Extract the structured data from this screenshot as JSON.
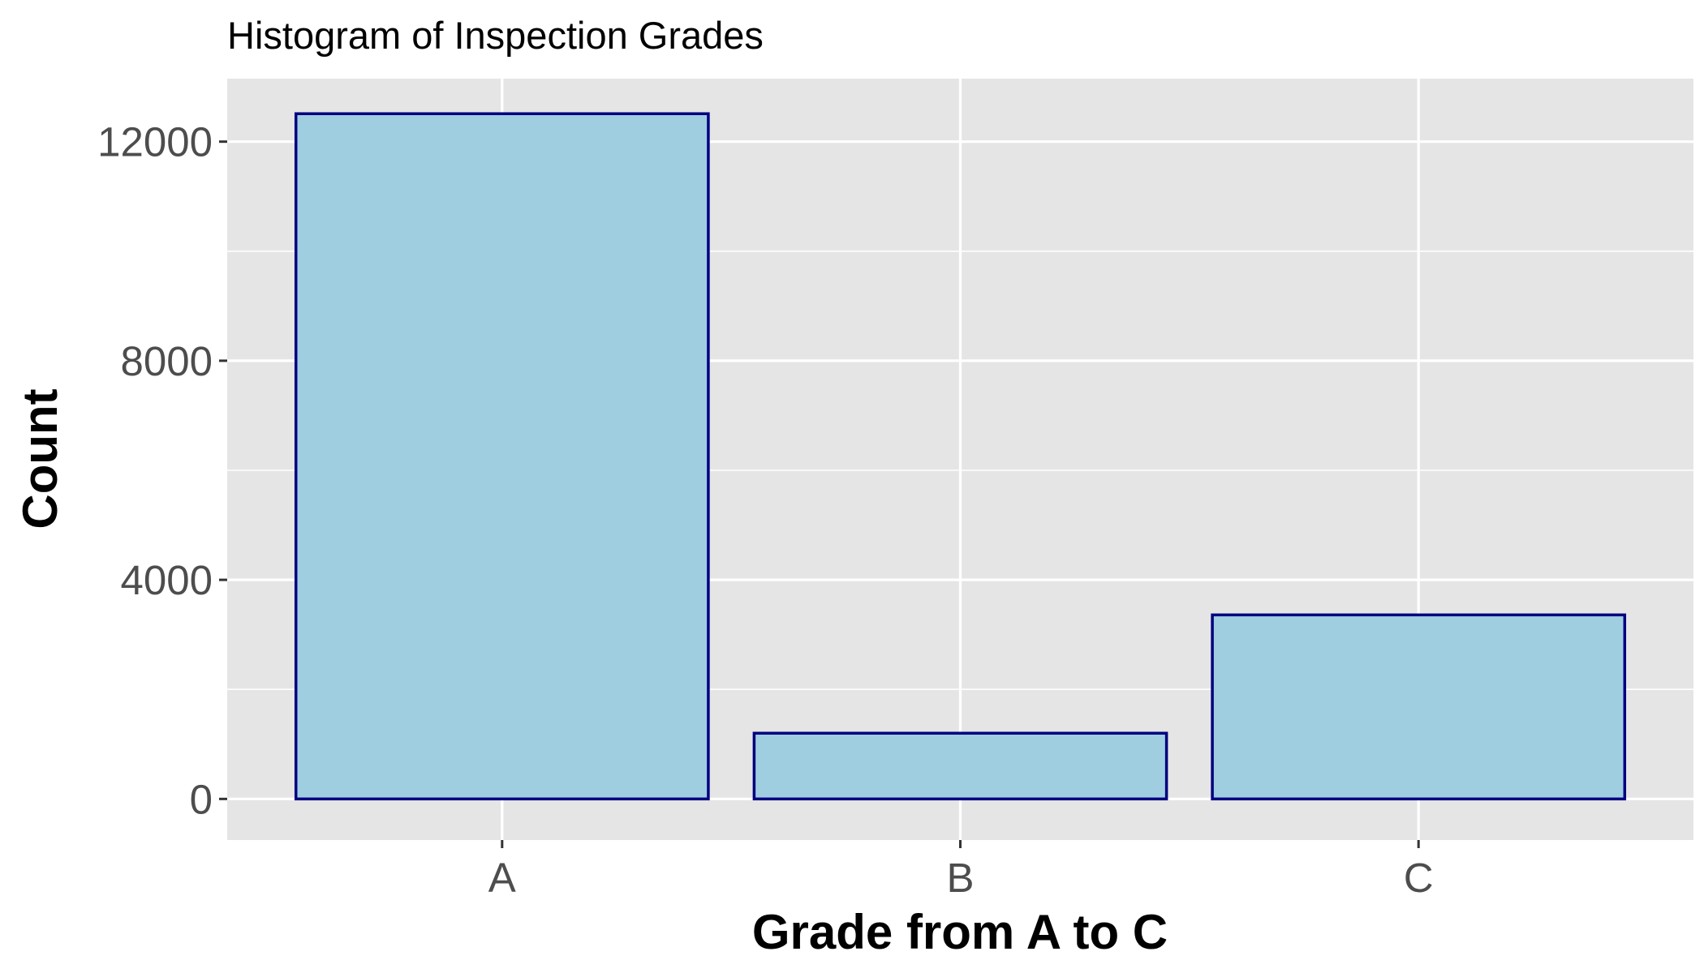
{
  "chart_data": {
    "type": "bar",
    "title": "Histogram of Inspection Grades",
    "xlabel": "Grade from A to C",
    "ylabel": "Count",
    "categories": [
      "A",
      "B",
      "C"
    ],
    "values": [
      12510,
      1200,
      3360
    ],
    "ylim": [
      -750,
      13150
    ],
    "yticks": [
      0,
      4000,
      8000,
      12000
    ],
    "ytick_labels": [
      "0",
      "4000",
      "8000",
      "12000"
    ],
    "grid": true,
    "legend": "none",
    "colors": {
      "panel_background": "#e5e5e5",
      "grid": "#ffffff",
      "bar_fill": "#9fcee0",
      "bar_outline": "#000080",
      "tick_text": "#4d4d4d",
      "tick_mark": "#333333"
    }
  }
}
